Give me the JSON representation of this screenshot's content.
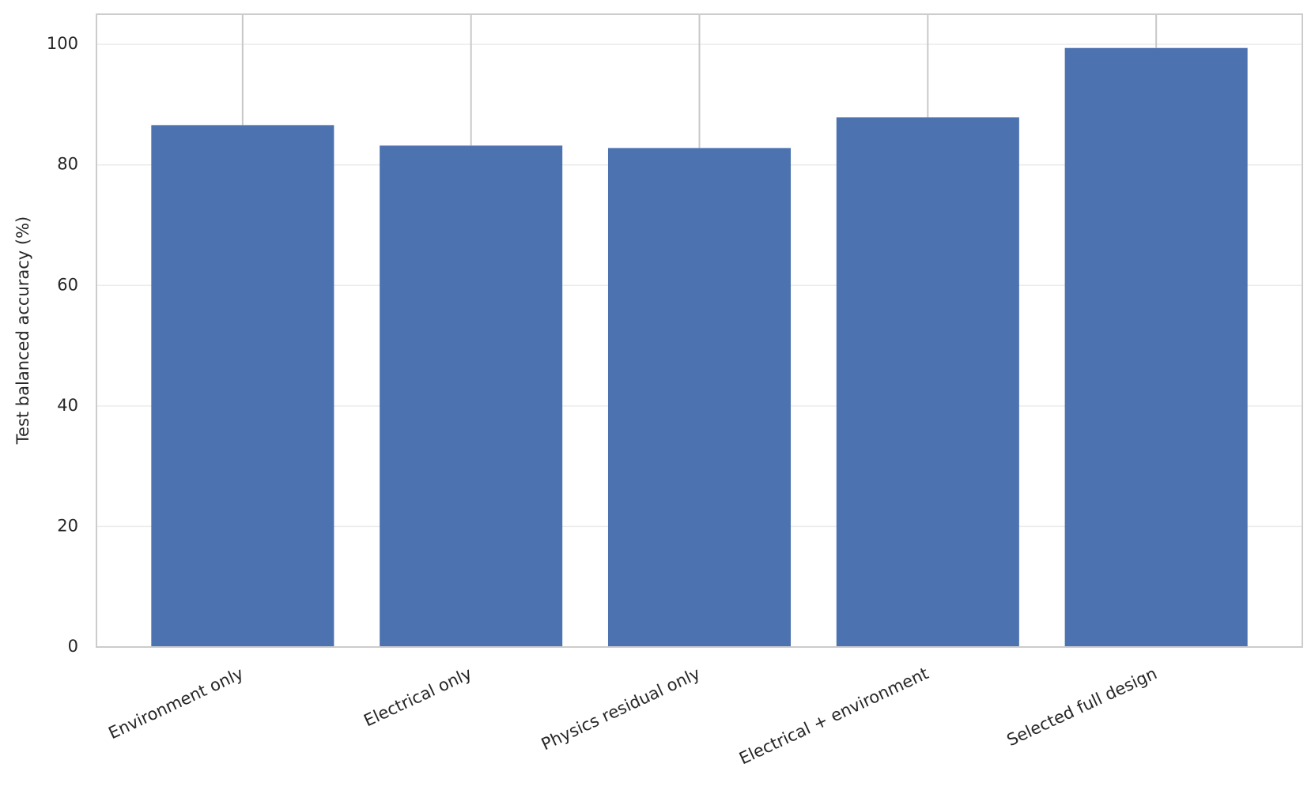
{
  "chart_data": {
    "type": "bar",
    "y_label": "Test balanced accuracy (%)",
    "categories": [
      "Environment only",
      "Electrical only",
      "Physics residual only",
      "Electrical + environment",
      "Selected full design"
    ],
    "values": [
      86.6,
      83.2,
      82.8,
      87.9,
      99.4
    ],
    "color": "#4c72b0",
    "ylim": [
      0,
      105
    ],
    "yticks": [
      0,
      20,
      40,
      60,
      80,
      100
    ],
    "grid": true
  }
}
